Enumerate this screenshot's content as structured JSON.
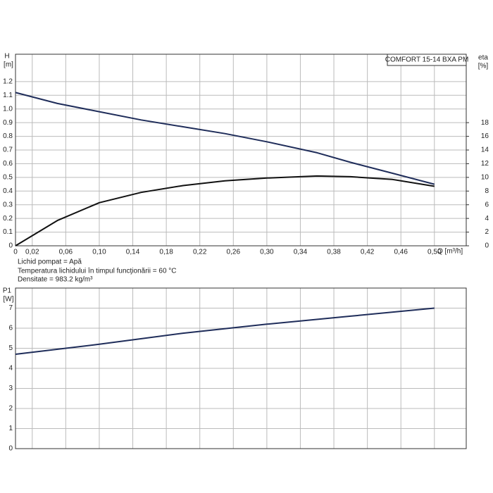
{
  "chart_data": [
    {
      "type": "line",
      "title": "COMFORT 15-14 BXA PM",
      "y_label": "H",
      "y_unit": "[m]",
      "y2_label": "eta",
      "y2_unit": "[%]",
      "x_label": "Q [m³/h]",
      "notes": [
        "Lichid pompat = Apă",
        "Temperatura lichidului în timpul funcţionării = 60 °C",
        "Densitate = 983.2 kg/m³"
      ],
      "x": [
        0,
        0.05,
        0.1,
        0.15,
        0.2,
        0.25,
        0.3,
        0.36,
        0.4,
        0.45,
        0.5
      ],
      "series": [
        {
          "color": "#1f2d5a",
          "values": [
            1.12,
            1.04,
            0.98,
            0.92,
            0.87,
            0.82,
            0.76,
            0.68,
            0.61,
            0.53,
            0.45
          ]
        },
        {
          "color": "#111111",
          "axis": "y2",
          "values": [
            0,
            3.7,
            6.3,
            7.8,
            8.8,
            9.5,
            9.9,
            10.2,
            10.1,
            9.7,
            8.7
          ]
        }
      ],
      "xlim": [
        0,
        0.538
      ],
      "ylim": [
        0,
        1.4
      ],
      "y2lim": [
        0,
        28
      ],
      "xticks": [
        0,
        {
          "value": 0.02,
          "label": "0,02"
        },
        {
          "value": 0.06,
          "label": "0,06"
        },
        {
          "value": 0.1,
          "label": "0,10"
        },
        {
          "value": 0.14,
          "label": "0,14"
        },
        {
          "value": 0.18,
          "label": "0,18"
        },
        {
          "value": 0.22,
          "label": "0,22"
        },
        {
          "value": 0.26,
          "label": "0,26"
        },
        {
          "value": 0.3,
          "label": "0,30"
        },
        {
          "value": 0.34,
          "label": "0,34"
        },
        {
          "value": 0.38,
          "label": "0,38"
        },
        {
          "value": 0.42,
          "label": "0,42"
        },
        {
          "value": 0.46,
          "label": "0,46"
        },
        {
          "value": 0.5,
          "label": "0,50"
        }
      ],
      "yticks": [
        0,
        0.1,
        0.2,
        0.3,
        0.4,
        0.5,
        0.6,
        0.7,
        0.8,
        0.9,
        {
          "value": 1,
          "label": "1.0"
        },
        1.1,
        1.2
      ],
      "y2ticks": [
        0,
        2,
        4,
        6,
        8,
        10,
        12,
        14,
        16,
        18
      ],
      "grid": true
    },
    {
      "type": "line",
      "y_label": "P1",
      "y_unit": "[W]",
      "x": [
        0,
        0.1,
        0.2,
        0.3,
        0.4,
        0.5
      ],
      "series": [
        {
          "color": "#1f2d5a",
          "values": [
            4.7,
            5.2,
            5.75,
            6.2,
            6.6,
            7.0
          ]
        }
      ],
      "xlim": [
        0,
        0.538
      ],
      "ylim": [
        0,
        8
      ],
      "yticks": [
        0,
        1,
        2,
        3,
        4,
        5,
        6,
        7
      ],
      "grid": true
    }
  ]
}
